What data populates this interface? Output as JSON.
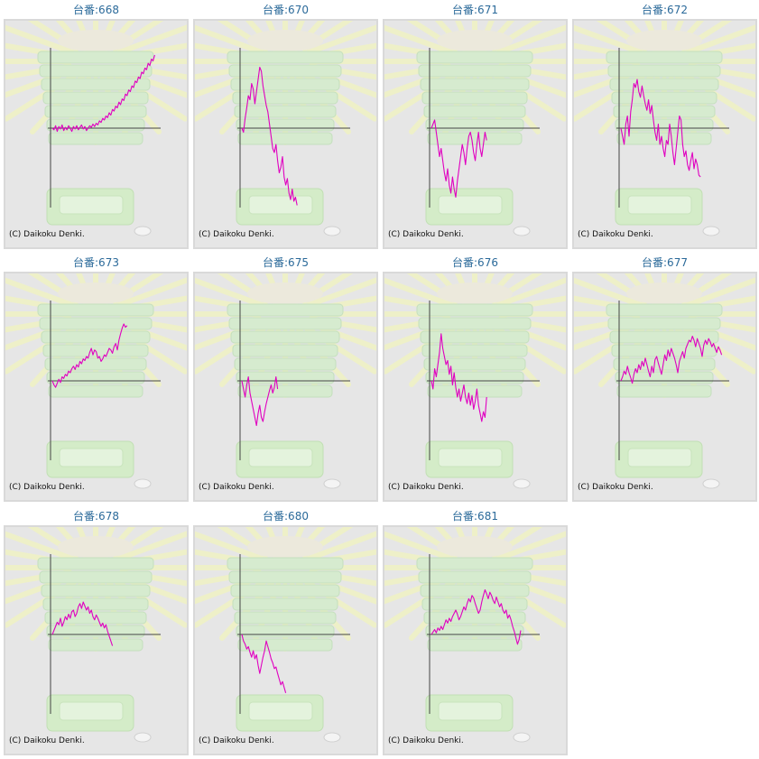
{
  "colors": {
    "line": "#e000c0",
    "title": "#2b6a9a",
    "axis": "#444444",
    "panel": "#e6e6e6"
  },
  "chart_data": [
    {
      "type": "line",
      "title": "台番:668",
      "credit": "(C) Daikoku Denki.",
      "y": [
        0,
        -2,
        3,
        -4,
        2,
        -1,
        4,
        -3,
        1,
        -2,
        3,
        0,
        -4,
        2,
        -1,
        3,
        -2,
        1,
        4,
        -1,
        2,
        -3,
        0,
        3,
        1,
        5,
        2,
        6,
        4,
        9,
        7,
        12,
        10,
        15,
        13,
        19,
        16,
        23,
        21,
        27,
        25,
        32,
        29,
        36,
        34,
        42,
        40,
        47,
        45,
        52,
        50,
        58,
        56,
        63,
        61,
        69,
        67,
        74,
        72,
        80,
        77,
        85,
        83,
        90
      ]
    },
    {
      "type": "line",
      "title": "台番:670",
      "credit": "(C) Daikoku Denki.",
      "y": [
        0,
        -5,
        12,
        25,
        40,
        35,
        55,
        48,
        30,
        45,
        60,
        75,
        70,
        52,
        40,
        28,
        20,
        5,
        -10,
        -25,
        -30,
        -20,
        -40,
        -55,
        -48,
        -35,
        -60,
        -70,
        -62,
        -80,
        -88,
        -75,
        -90,
        -85,
        -95
      ]
    },
    {
      "type": "line",
      "title": "台番:671",
      "credit": "(C) Daikoku Denki.",
      "y": [
        0,
        5,
        10,
        -5,
        -20,
        -35,
        -25,
        -40,
        -55,
        -65,
        -50,
        -70,
        -80,
        -60,
        -75,
        -85,
        -65,
        -50,
        -35,
        -20,
        -30,
        -45,
        -25,
        -10,
        -5,
        -15,
        -30,
        -40,
        -20,
        -5,
        -25,
        -35,
        -20,
        -5,
        -15
      ]
    },
    {
      "type": "line",
      "title": "台番:672",
      "credit": "(C) Daikoku Denki.",
      "y": [
        0,
        -10,
        -20,
        5,
        15,
        -10,
        20,
        35,
        55,
        50,
        60,
        45,
        38,
        52,
        40,
        30,
        22,
        35,
        18,
        28,
        10,
        -5,
        -15,
        5,
        -20,
        -10,
        -25,
        -35,
        -15,
        -20,
        5,
        -10,
        -30,
        -45,
        -25,
        -5,
        15,
        10,
        -20,
        -35,
        -28,
        -45,
        -52,
        -40,
        -30,
        -50,
        -38,
        -45,
        -58,
        -60
      ]
    },
    {
      "type": "line",
      "title": "台番:673",
      "credit": "(C) Daikoku Denki.",
      "y": [
        0,
        -5,
        -8,
        -3,
        2,
        -2,
        5,
        3,
        8,
        6,
        12,
        10,
        15,
        18,
        14,
        20,
        17,
        24,
        21,
        27,
        25,
        30,
        28,
        35,
        40,
        32,
        38,
        36,
        28,
        30,
        24,
        27,
        32,
        30,
        35,
        40,
        38,
        34,
        42,
        46,
        38,
        50,
        58,
        65,
        70,
        66,
        68
      ]
    },
    {
      "type": "line",
      "title": "台番:675",
      "credit": "(C) Daikoku Denki.",
      "y": [
        0,
        -10,
        -20,
        -5,
        5,
        -15,
        -25,
        -35,
        -45,
        -55,
        -40,
        -30,
        -45,
        -50,
        -38,
        -28,
        -20,
        -12,
        -5,
        -15,
        -8,
        5,
        -10
      ]
    },
    {
      "type": "line",
      "title": "台番:676",
      "credit": "(C) Daikoku Denki.",
      "y": [
        0,
        -10,
        15,
        5,
        20,
        35,
        58,
        40,
        30,
        20,
        25,
        8,
        18,
        -5,
        10,
        -8,
        -20,
        -10,
        -25,
        -15,
        -5,
        -20,
        -28,
        -15,
        -30,
        -18,
        -35,
        -25,
        -10,
        -30,
        -40,
        -50,
        -38,
        -45,
        -20
      ]
    },
    {
      "type": "line",
      "title": "台番:677",
      "credit": "(C) Daikoku Denki.",
      "y": [
        0,
        5,
        12,
        8,
        18,
        10,
        4,
        -3,
        8,
        15,
        10,
        20,
        14,
        24,
        18,
        28,
        20,
        12,
        5,
        18,
        10,
        26,
        30,
        22,
        15,
        8,
        20,
        32,
        25,
        38,
        30,
        40,
        34,
        28,
        20,
        10,
        24,
        30,
        36,
        28,
        40,
        45,
        50,
        48,
        55,
        50,
        42,
        52,
        46,
        40,
        30,
        44,
        50,
        45,
        52,
        48,
        42,
        46,
        40,
        35,
        42,
        38,
        32
      ]
    },
    {
      "type": "line",
      "title": "台番:678",
      "credit": "(C) Daikoku Denki.",
      "y": [
        0,
        5,
        10,
        15,
        12,
        20,
        10,
        15,
        22,
        18,
        25,
        20,
        28,
        30,
        22,
        26,
        34,
        38,
        32,
        40,
        35,
        30,
        34,
        26,
        30,
        22,
        18,
        24,
        20,
        15,
        10,
        14,
        8,
        12,
        4,
        -2,
        -8,
        -14
      ]
    },
    {
      "type": "line",
      "title": "台番:680",
      "credit": "(C) Daikoku Denki.",
      "y": [
        0,
        -8,
        -12,
        -18,
        -15,
        -22,
        -28,
        -20,
        -30,
        -25,
        -38,
        -48,
        -38,
        -28,
        -20,
        -8,
        -15,
        -22,
        -30,
        -35,
        -42,
        -40,
        -48,
        -55,
        -62,
        -58,
        -65,
        -72
      ]
    },
    {
      "type": "line",
      "title": "台番:681",
      "credit": "(C) Daikoku Denki.",
      "y": [
        0,
        3,
        6,
        2,
        8,
        5,
        10,
        6,
        12,
        18,
        14,
        20,
        16,
        22,
        26,
        30,
        25,
        18,
        22,
        28,
        34,
        30,
        38,
        44,
        40,
        48,
        45,
        38,
        32,
        26,
        30,
        40,
        48,
        55,
        50,
        44,
        52,
        48,
        42,
        38,
        46,
        40,
        34,
        38,
        30,
        26,
        30,
        20,
        24,
        18,
        10,
        4,
        -4,
        -12,
        -6,
        5
      ]
    }
  ]
}
